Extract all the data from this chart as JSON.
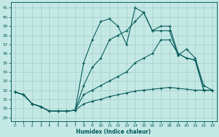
{
  "xlabel": "Humidex (Indice chaleur)",
  "bg_color": "#c4e8e4",
  "grid_color": "#a4ccc8",
  "line_color": "#005858",
  "xlim": [
    -0.5,
    23.5
  ],
  "ylim": [
    28.6,
    41.6
  ],
  "yticks": [
    29,
    30,
    31,
    32,
    33,
    34,
    35,
    36,
    37,
    38,
    39,
    40,
    41
  ],
  "xticks": [
    0,
    1,
    2,
    3,
    4,
    5,
    6,
    7,
    8,
    9,
    10,
    11,
    12,
    13,
    14,
    15,
    16,
    17,
    18,
    19,
    20,
    21,
    22,
    23
  ],
  "series": [
    {
      "y": [
        31.8,
        31.5,
        30.5,
        30.2,
        29.7,
        29.7,
        29.7,
        29.8,
        35.0,
        37.5,
        39.5,
        39.8,
        39.0,
        37.0,
        41.0,
        40.5,
        38.5,
        38.5,
        38.5,
        35.8,
        36.5,
        35.5,
        32.5,
        32.0
      ]
    },
    {
      "y": [
        31.8,
        31.5,
        30.5,
        30.2,
        29.7,
        29.7,
        29.7,
        29.8,
        32.5,
        34.5,
        35.5,
        37.5,
        38.0,
        38.5,
        39.5,
        40.5,
        38.5,
        39.0,
        39.0,
        36.0,
        35.5,
        35.3,
        32.0,
        32.0
      ]
    },
    {
      "y": [
        31.8,
        31.5,
        30.5,
        30.2,
        29.7,
        29.7,
        29.7,
        29.8,
        31.5,
        32.0,
        32.5,
        33.0,
        33.5,
        34.0,
        35.0,
        35.5,
        36.0,
        37.5,
        37.5,
        36.0,
        35.5,
        35.3,
        32.0,
        32.0
      ]
    },
    {
      "y": [
        31.8,
        31.5,
        30.5,
        30.2,
        29.7,
        29.7,
        29.7,
        29.8,
        30.5,
        30.8,
        31.0,
        31.3,
        31.5,
        31.7,
        31.9,
        32.0,
        32.1,
        32.2,
        32.3,
        32.2,
        32.1,
        32.0,
        32.0,
        32.0
      ]
    }
  ]
}
